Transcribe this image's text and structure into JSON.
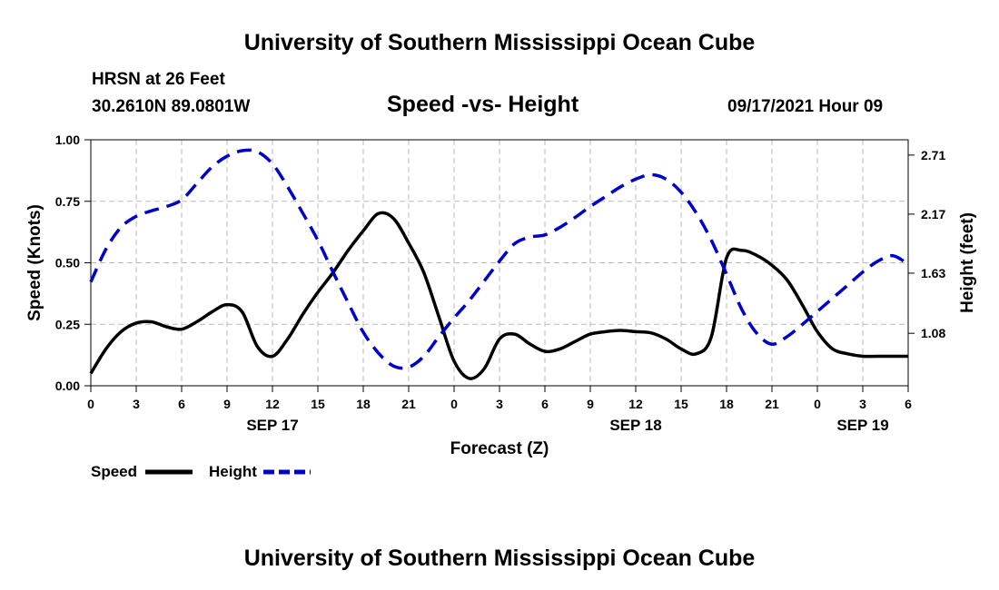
{
  "header": {
    "title": "University of Southern Mississippi Ocean Cube",
    "station": "HRSN at 26 Feet",
    "coords": "30.2610N  89.0801W",
    "subtitle": "Speed -vs- Height",
    "datetime": "09/17/2021 Hour 09"
  },
  "footer": {
    "title": "University of Southern Mississippi Ocean Cube"
  },
  "chart_data": {
    "type": "line",
    "title": "Speed -vs- Height",
    "xlabel": "Forecast (Z)",
    "ylabel": "Speed (Knots)",
    "y2label": "Height (feet)",
    "xlim": [
      0,
      54
    ],
    "ylim": [
      0,
      1
    ],
    "y2lim": [
      0.6,
      2.85
    ],
    "x_ticks": [
      0,
      3,
      6,
      9,
      12,
      15,
      18,
      21,
      24,
      27,
      30,
      33,
      36,
      39,
      42,
      45,
      48,
      51,
      54
    ],
    "x_tick_labels": [
      "0",
      "3",
      "6",
      "9",
      "12",
      "15",
      "18",
      "21",
      "0",
      "3",
      "6",
      "9",
      "12",
      "15",
      "18",
      "21",
      "0",
      "3",
      "6"
    ],
    "date_labels": [
      {
        "x": 12,
        "label": "SEP 17"
      },
      {
        "x": 36,
        "label": "SEP 18"
      },
      {
        "x": 51,
        "label": "SEP 19"
      }
    ],
    "y_ticks": [
      0,
      0.25,
      0.5,
      0.75,
      1.0
    ],
    "y_tick_labels": [
      "0.00",
      "0.25",
      "0.50",
      "0.75",
      "1.00"
    ],
    "y2_ticks": [
      1.08,
      1.63,
      2.17,
      2.71
    ],
    "y2_tick_labels": [
      "1.08",
      "1.63",
      "2.17",
      "2.71"
    ],
    "grid": true,
    "series": [
      {
        "name": "Speed",
        "axis": "left",
        "color": "#000000",
        "dash": "solid",
        "x": [
          0,
          1,
          2,
          3,
          4,
          5,
          6,
          7,
          8,
          9,
          10,
          11,
          12,
          13,
          14,
          15,
          16,
          17,
          18,
          19,
          20,
          21,
          22,
          23,
          24,
          25,
          26,
          27,
          28,
          29,
          30,
          31,
          32,
          33,
          34,
          35,
          36,
          37,
          38,
          39,
          40,
          41,
          42,
          43,
          44,
          45,
          46,
          47,
          48,
          49,
          50,
          51,
          52,
          53,
          54
        ],
        "values": [
          0.05,
          0.15,
          0.22,
          0.255,
          0.26,
          0.24,
          0.23,
          0.26,
          0.3,
          0.33,
          0.3,
          0.16,
          0.12,
          0.19,
          0.29,
          0.38,
          0.46,
          0.55,
          0.63,
          0.7,
          0.68,
          0.58,
          0.46,
          0.28,
          0.1,
          0.03,
          0.07,
          0.19,
          0.21,
          0.17,
          0.14,
          0.15,
          0.18,
          0.21,
          0.22,
          0.225,
          0.22,
          0.215,
          0.19,
          0.15,
          0.13,
          0.2,
          0.52,
          0.55,
          0.53,
          0.49,
          0.43,
          0.33,
          0.22,
          0.15,
          0.13,
          0.12,
          0.12,
          0.12,
          0.12
        ]
      },
      {
        "name": "Height",
        "axis": "right",
        "color": "#0000cc",
        "dash": "dashed",
        "x": [
          0,
          1,
          2,
          3,
          4,
          5,
          6,
          7,
          8,
          9,
          10,
          11,
          12,
          13,
          14,
          15,
          16,
          17,
          18,
          19,
          20,
          21,
          22,
          23,
          24,
          25,
          26,
          27,
          28,
          29,
          30,
          31,
          32,
          33,
          34,
          35,
          36,
          37,
          38,
          39,
          40,
          41,
          42,
          43,
          44,
          45,
          46,
          47,
          48,
          49,
          50,
          51,
          52,
          53,
          54
        ],
        "values": [
          1.55,
          1.85,
          2.05,
          2.15,
          2.2,
          2.24,
          2.3,
          2.45,
          2.6,
          2.7,
          2.75,
          2.74,
          2.63,
          2.42,
          2.18,
          1.93,
          1.64,
          1.36,
          1.09,
          0.9,
          0.78,
          0.77,
          0.87,
          1.05,
          1.22,
          1.38,
          1.56,
          1.74,
          1.9,
          1.96,
          1.98,
          2.05,
          2.14,
          2.24,
          2.33,
          2.42,
          2.49,
          2.53,
          2.49,
          2.37,
          2.18,
          1.93,
          1.62,
          1.3,
          1.08,
          0.98,
          1.05,
          1.16,
          1.28,
          1.4,
          1.52,
          1.64,
          1.74,
          1.79,
          1.71
        ]
      }
    ],
    "legend": [
      {
        "label": "Speed",
        "color": "#000000",
        "dash": "solid"
      },
      {
        "label": "Height",
        "color": "#0000cc",
        "dash": "dashed"
      }
    ]
  }
}
